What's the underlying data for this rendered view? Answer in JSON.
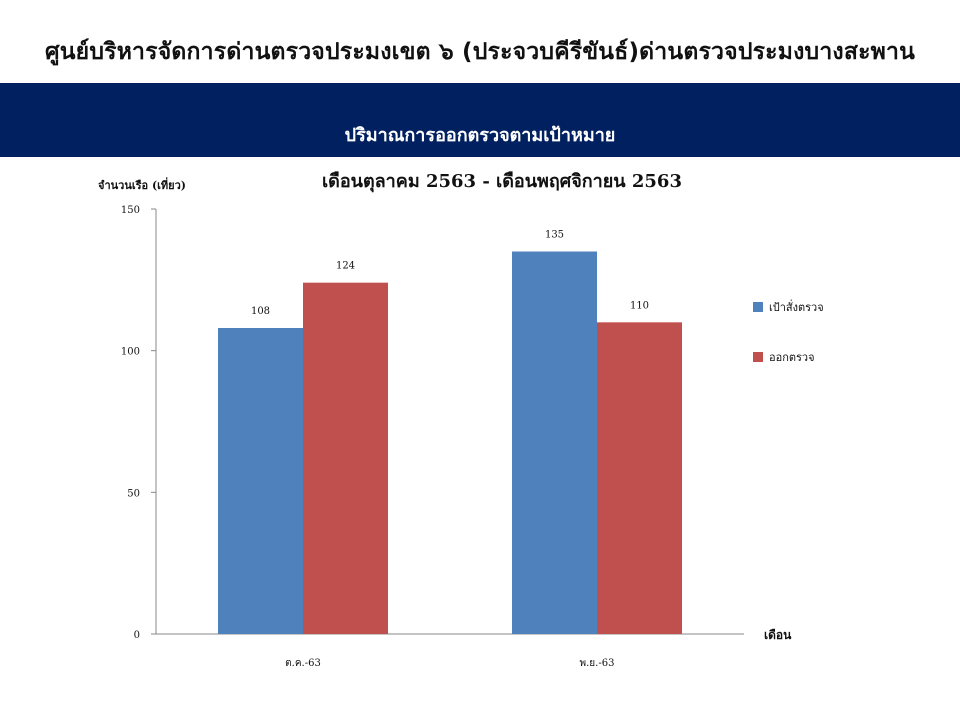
{
  "header": {
    "title": "ศูนย์บริหารจัดการด่านตรวจประมงเขต ๖ (ประจวบคีรีขันธ์)ด่านตรวจประมงบางสะพาน",
    "banner_text": "ปริมาณการออกตรวจตามเป้าหมาย",
    "banner_color": "#002060"
  },
  "chart_data": {
    "type": "bar",
    "title": "เดือนตุลาคม 2563 - เดือนพฤศจิกายน 2563",
    "ylabel": "จำนวนเรือ (เที่ยว)",
    "xlabel": "เดือน",
    "categories": [
      "ต.ค.-63",
      "พ.ย.-63"
    ],
    "series": [
      {
        "name": "เป้าสั่งตรวจ",
        "values": [
          108,
          135
        ],
        "color": "#4F81BD"
      },
      {
        "name": "ออกตรวจ",
        "values": [
          124,
          110
        ],
        "color": "#C0504D"
      }
    ],
    "ylim": [
      0,
      150
    ],
    "yticks": [
      0,
      50,
      100,
      150
    ],
    "grid": false,
    "legend_position": "right",
    "data_labels": true
  }
}
